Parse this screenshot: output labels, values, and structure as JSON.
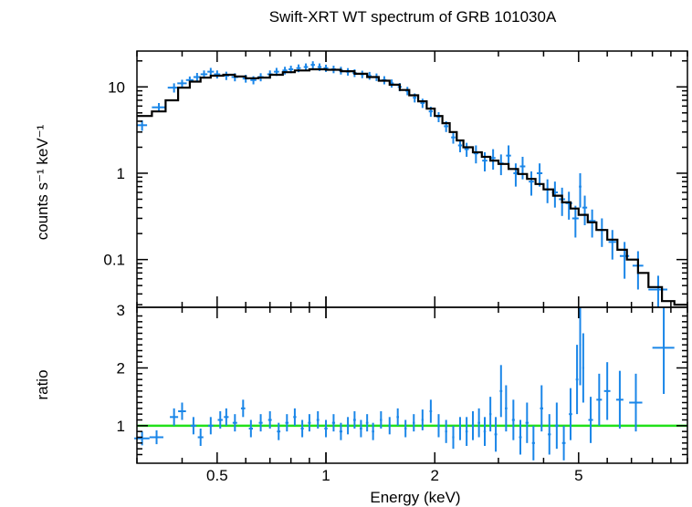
{
  "chart_data": [
    {
      "panel": "spectrum",
      "type": "scatter",
      "title": "Swift-XRT WT spectrum of GRB 101030A",
      "ylabel": "counts s⁻¹ keV⁻¹",
      "xscale": "log",
      "yscale": "log",
      "xlim": [
        0.3,
        10
      ],
      "ylim": [
        0.028,
        26
      ],
      "y_ticks": [
        {
          "value": 0.1,
          "label": "0.1"
        },
        {
          "value": 1,
          "label": "1"
        },
        {
          "value": 10,
          "label": "10"
        }
      ],
      "colors": {
        "data": "#1a86e8",
        "model": "#000000"
      },
      "data_points": [
        [
          0.31,
          3.6,
          0.01,
          0.5
        ],
        [
          0.345,
          5.8,
          0.015,
          0.7
        ],
        [
          0.38,
          9.8,
          0.015,
          1.2
        ],
        [
          0.4,
          11,
          0.012,
          1.1
        ],
        [
          0.42,
          12,
          0.01,
          1.2
        ],
        [
          0.44,
          13,
          0.01,
          1.5
        ],
        [
          0.46,
          14,
          0.01,
          1.5
        ],
        [
          0.48,
          15,
          0.01,
          1.6
        ],
        [
          0.5,
          14,
          0.01,
          1.5
        ],
        [
          0.53,
          13.5,
          0.01,
          1.5
        ],
        [
          0.56,
          13,
          0.012,
          1.4
        ],
        [
          0.6,
          12.5,
          0.012,
          1.3
        ],
        [
          0.63,
          12,
          0.012,
          1.3
        ],
        [
          0.66,
          13,
          0.012,
          1.4
        ],
        [
          0.7,
          14,
          0.012,
          1.5
        ],
        [
          0.73,
          15,
          0.012,
          1.6
        ],
        [
          0.77,
          15.5,
          0.012,
          1.6
        ],
        [
          0.8,
          16,
          0.012,
          1.6
        ],
        [
          0.84,
          16.5,
          0.012,
          1.7
        ],
        [
          0.88,
          17,
          0.012,
          1.7
        ],
        [
          0.92,
          18,
          0.012,
          1.8
        ],
        [
          0.96,
          17,
          0.012,
          1.7
        ],
        [
          1.0,
          16.5,
          0.015,
          1.6
        ],
        [
          1.05,
          16,
          0.015,
          1.6
        ],
        [
          1.1,
          15.5,
          0.015,
          1.6
        ],
        [
          1.15,
          15,
          0.015,
          1.5
        ],
        [
          1.2,
          14.5,
          0.015,
          1.5
        ],
        [
          1.26,
          14,
          0.015,
          1.4
        ],
        [
          1.32,
          13.5,
          0.015,
          1.4
        ],
        [
          1.38,
          13,
          0.015,
          1.3
        ],
        [
          1.45,
          12,
          0.02,
          1.3
        ],
        [
          1.52,
          11,
          0.02,
          1.2
        ],
        [
          1.6,
          10,
          0.02,
          1.1
        ],
        [
          1.68,
          9,
          0.02,
          1.0
        ],
        [
          1.76,
          7.5,
          0.02,
          0.9
        ],
        [
          1.85,
          6.5,
          0.025,
          0.8
        ],
        [
          1.95,
          5.2,
          0.025,
          0.7
        ],
        [
          2.05,
          4.5,
          0.025,
          0.6
        ],
        [
          2.15,
          3.5,
          0.03,
          0.5
        ],
        [
          2.25,
          2.6,
          0.03,
          0.4
        ],
        [
          2.35,
          2.1,
          0.03,
          0.35
        ],
        [
          2.45,
          1.9,
          0.035,
          0.35
        ],
        [
          2.6,
          1.7,
          0.04,
          0.4
        ],
        [
          2.75,
          1.4,
          0.045,
          0.35
        ],
        [
          2.9,
          1.5,
          0.045,
          0.4
        ],
        [
          3.05,
          1.3,
          0.05,
          0.35
        ],
        [
          3.2,
          1.6,
          0.05,
          0.5
        ],
        [
          3.35,
          1.0,
          0.05,
          0.3
        ],
        [
          3.5,
          1.2,
          0.06,
          0.35
        ],
        [
          3.7,
          0.8,
          0.06,
          0.25
        ],
        [
          3.9,
          1.0,
          0.07,
          0.3
        ],
        [
          4.1,
          0.65,
          0.07,
          0.2
        ],
        [
          4.3,
          0.6,
          0.08,
          0.2
        ],
        [
          4.5,
          0.5,
          0.09,
          0.18
        ],
        [
          4.7,
          0.45,
          0.1,
          0.16
        ],
        [
          4.9,
          0.3,
          0.1,
          0.12
        ],
        [
          5.05,
          0.7,
          0.04,
          0.3
        ],
        [
          5.2,
          0.4,
          0.08,
          0.15
        ],
        [
          5.45,
          0.28,
          0.12,
          0.1
        ],
        [
          5.8,
          0.22,
          0.15,
          0.08
        ],
        [
          6.2,
          0.16,
          0.15,
          0.06
        ],
        [
          6.7,
          0.11,
          0.2,
          0.05
        ],
        [
          7.3,
          0.085,
          0.25,
          0.04
        ],
        [
          8.3,
          0.045,
          0.5,
          0.02
        ]
      ],
      "model_steps": [
        [
          0.3,
          4.6
        ],
        [
          0.33,
          5.2
        ],
        [
          0.36,
          7.0
        ],
        [
          0.39,
          9.8
        ],
        [
          0.42,
          11.5
        ],
        [
          0.45,
          12.8
        ],
        [
          0.48,
          13.5
        ],
        [
          0.52,
          13.8
        ],
        [
          0.56,
          13.2
        ],
        [
          0.6,
          12.6
        ],
        [
          0.65,
          12.8
        ],
        [
          0.7,
          13.8
        ],
        [
          0.76,
          14.8
        ],
        [
          0.82,
          15.5
        ],
        [
          0.9,
          16.0
        ],
        [
          1.0,
          15.8
        ],
        [
          1.1,
          15.2
        ],
        [
          1.2,
          14.2
        ],
        [
          1.3,
          13.0
        ],
        [
          1.4,
          11.8
        ],
        [
          1.5,
          10.6
        ],
        [
          1.6,
          9.2
        ],
        [
          1.7,
          8.0
        ],
        [
          1.8,
          6.8
        ],
        [
          1.9,
          5.6
        ],
        [
          2.0,
          4.6
        ],
        [
          2.1,
          3.8
        ],
        [
          2.2,
          3.0
        ],
        [
          2.3,
          2.4
        ],
        [
          2.4,
          2.0
        ],
        [
          2.55,
          1.75
        ],
        [
          2.7,
          1.55
        ],
        [
          2.85,
          1.4
        ],
        [
          3.0,
          1.28
        ],
        [
          3.2,
          1.12
        ],
        [
          3.4,
          0.98
        ],
        [
          3.6,
          0.86
        ],
        [
          3.8,
          0.75
        ],
        [
          4.0,
          0.65
        ],
        [
          4.25,
          0.55
        ],
        [
          4.5,
          0.46
        ],
        [
          4.75,
          0.39
        ],
        [
          5.0,
          0.33
        ],
        [
          5.3,
          0.27
        ],
        [
          5.6,
          0.22
        ],
        [
          6.0,
          0.17
        ],
        [
          6.4,
          0.13
        ],
        [
          6.8,
          0.1
        ],
        [
          7.3,
          0.07
        ],
        [
          7.8,
          0.048
        ],
        [
          8.5,
          0.033
        ],
        [
          9.2,
          0.03
        ]
      ]
    },
    {
      "panel": "ratio",
      "type": "scatter",
      "xlabel": "Energy (keV)",
      "ylabel": "ratio",
      "xscale": "log",
      "xlim": [
        0.3,
        10
      ],
      "ylim": [
        0.35,
        3.05
      ],
      "x_ticks": [
        {
          "value": 0.5,
          "label": "0.5"
        },
        {
          "value": 1,
          "label": "1"
        },
        {
          "value": 2,
          "label": "2"
        },
        {
          "value": 5,
          "label": "5"
        }
      ],
      "y_ticks": [
        {
          "value": 1,
          "label": "1"
        },
        {
          "value": 2,
          "label": "2"
        },
        {
          "value": 3,
          "label": "3"
        }
      ],
      "reference_line": 1,
      "colors": {
        "data": "#1a86e8",
        "reference": "#22e01a"
      },
      "data_points": [
        [
          0.31,
          0.78,
          0.015,
          0.12
        ],
        [
          0.34,
          0.8,
          0.015,
          0.12
        ],
        [
          0.38,
          1.15,
          0.01,
          0.15
        ],
        [
          0.4,
          1.25,
          0.01,
          0.15
        ],
        [
          0.43,
          1.0,
          0.008,
          0.15
        ],
        [
          0.45,
          0.8,
          0.008,
          0.15
        ],
        [
          0.48,
          1.0,
          0.008,
          0.15
        ],
        [
          0.51,
          1.1,
          0.008,
          0.15
        ],
        [
          0.53,
          1.15,
          0.008,
          0.15
        ],
        [
          0.56,
          1.05,
          0.008,
          0.15
        ],
        [
          0.59,
          1.3,
          0.008,
          0.15
        ],
        [
          0.62,
          0.95,
          0.008,
          0.15
        ],
        [
          0.66,
          1.05,
          0.008,
          0.15
        ],
        [
          0.7,
          1.1,
          0.008,
          0.15
        ],
        [
          0.74,
          0.9,
          0.008,
          0.15
        ],
        [
          0.78,
          1.05,
          0.008,
          0.15
        ],
        [
          0.82,
          1.15,
          0.008,
          0.15
        ],
        [
          0.86,
          0.95,
          0.008,
          0.15
        ],
        [
          0.9,
          1.05,
          0.008,
          0.15
        ],
        [
          0.95,
          1.1,
          0.008,
          0.15
        ],
        [
          1.0,
          0.95,
          0.01,
          0.15
        ],
        [
          1.05,
          1.05,
          0.01,
          0.15
        ],
        [
          1.1,
          0.9,
          0.01,
          0.15
        ],
        [
          1.15,
          1.0,
          0.01,
          0.15
        ],
        [
          1.2,
          1.1,
          0.01,
          0.15
        ],
        [
          1.25,
          0.95,
          0.01,
          0.15
        ],
        [
          1.3,
          1.05,
          0.01,
          0.15
        ],
        [
          1.35,
          0.9,
          0.01,
          0.15
        ],
        [
          1.42,
          1.1,
          0.01,
          0.15
        ],
        [
          1.5,
          1.0,
          0.012,
          0.15
        ],
        [
          1.58,
          1.15,
          0.012,
          0.15
        ],
        [
          1.66,
          0.95,
          0.012,
          0.15
        ],
        [
          1.75,
          1.05,
          0.012,
          0.15
        ],
        [
          1.85,
          1.1,
          0.012,
          0.18
        ],
        [
          1.95,
          1.25,
          0.015,
          0.2
        ],
        [
          2.05,
          1.0,
          0.015,
          0.2
        ],
        [
          2.15,
          0.9,
          0.015,
          0.2
        ],
        [
          2.25,
          0.8,
          0.015,
          0.2
        ],
        [
          2.35,
          0.95,
          0.015,
          0.2
        ],
        [
          2.45,
          0.9,
          0.018,
          0.25
        ],
        [
          2.55,
          1.0,
          0.02,
          0.25
        ],
        [
          2.65,
          1.05,
          0.02,
          0.25
        ],
        [
          2.75,
          0.9,
          0.02,
          0.25
        ],
        [
          2.85,
          1.2,
          0.02,
          0.3
        ],
        [
          2.95,
          0.85,
          0.025,
          0.3
        ],
        [
          3.05,
          1.6,
          0.025,
          0.45
        ],
        [
          3.15,
          1.3,
          0.025,
          0.4
        ],
        [
          3.3,
          1.1,
          0.03,
          0.35
        ],
        [
          3.45,
          0.8,
          0.03,
          0.3
        ],
        [
          3.6,
          1.05,
          0.035,
          0.35
        ],
        [
          3.75,
          0.7,
          0.035,
          0.3
        ],
        [
          3.95,
          1.3,
          0.04,
          0.4
        ],
        [
          4.15,
          0.85,
          0.04,
          0.35
        ],
        [
          4.35,
          1.0,
          0.05,
          0.4
        ],
        [
          4.55,
          0.7,
          0.05,
          0.3
        ],
        [
          4.75,
          1.2,
          0.05,
          0.45
        ],
        [
          4.95,
          1.8,
          0.04,
          0.6
        ],
        [
          5.05,
          2.4,
          0.03,
          0.7
        ],
        [
          5.15,
          2.0,
          0.03,
          0.6
        ],
        [
          5.4,
          1.1,
          0.08,
          0.4
        ],
        [
          5.7,
          1.45,
          0.1,
          0.45
        ],
        [
          6.0,
          1.6,
          0.12,
          0.5
        ],
        [
          6.5,
          1.45,
          0.15,
          0.5
        ],
        [
          7.2,
          1.4,
          0.3,
          0.5
        ],
        [
          8.6,
          2.35,
          0.6,
          0.8
        ]
      ]
    }
  ]
}
